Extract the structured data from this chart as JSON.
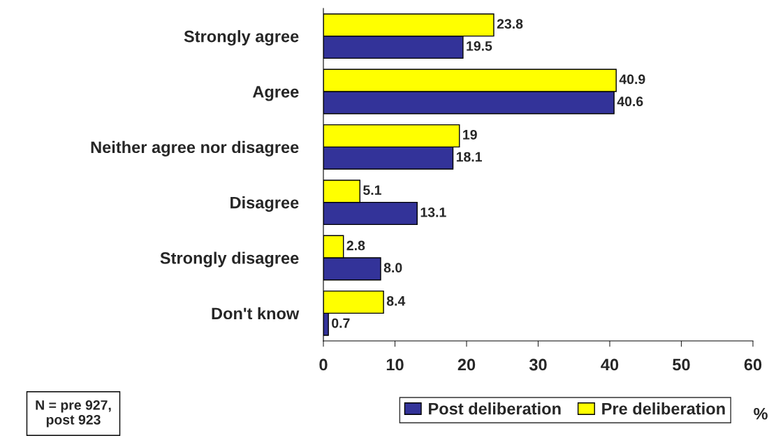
{
  "chart_data": {
    "type": "bar",
    "orientation": "horizontal",
    "categories": [
      "Strongly agree",
      "Agree",
      "Neither agree nor disagree",
      "Disagree",
      "Strongly disagree",
      "Don't know"
    ],
    "series": [
      {
        "name": "Post deliberation",
        "color": "#333399",
        "values": [
          19.5,
          40.6,
          18.1,
          13.1,
          8.0,
          0.7
        ],
        "value_labels": [
          "19.5",
          "40.6",
          "18.1",
          "13.1",
          "8.0",
          "0.7"
        ]
      },
      {
        "name": "Pre deliberation",
        "color": "#ffff00",
        "values": [
          23.8,
          40.9,
          19,
          5.1,
          2.8,
          8.4
        ],
        "value_labels": [
          "23.8",
          "40.9",
          "19",
          "5.1",
          "2.8",
          "8.4"
        ]
      }
    ],
    "xlim": [
      0,
      60
    ],
    "xticks": [
      0,
      10,
      20,
      30,
      40,
      50,
      60
    ],
    "xlabel": "%",
    "legend": "bottom right",
    "grid": false,
    "annotations": [
      "N = pre 927,\npost 923"
    ]
  }
}
